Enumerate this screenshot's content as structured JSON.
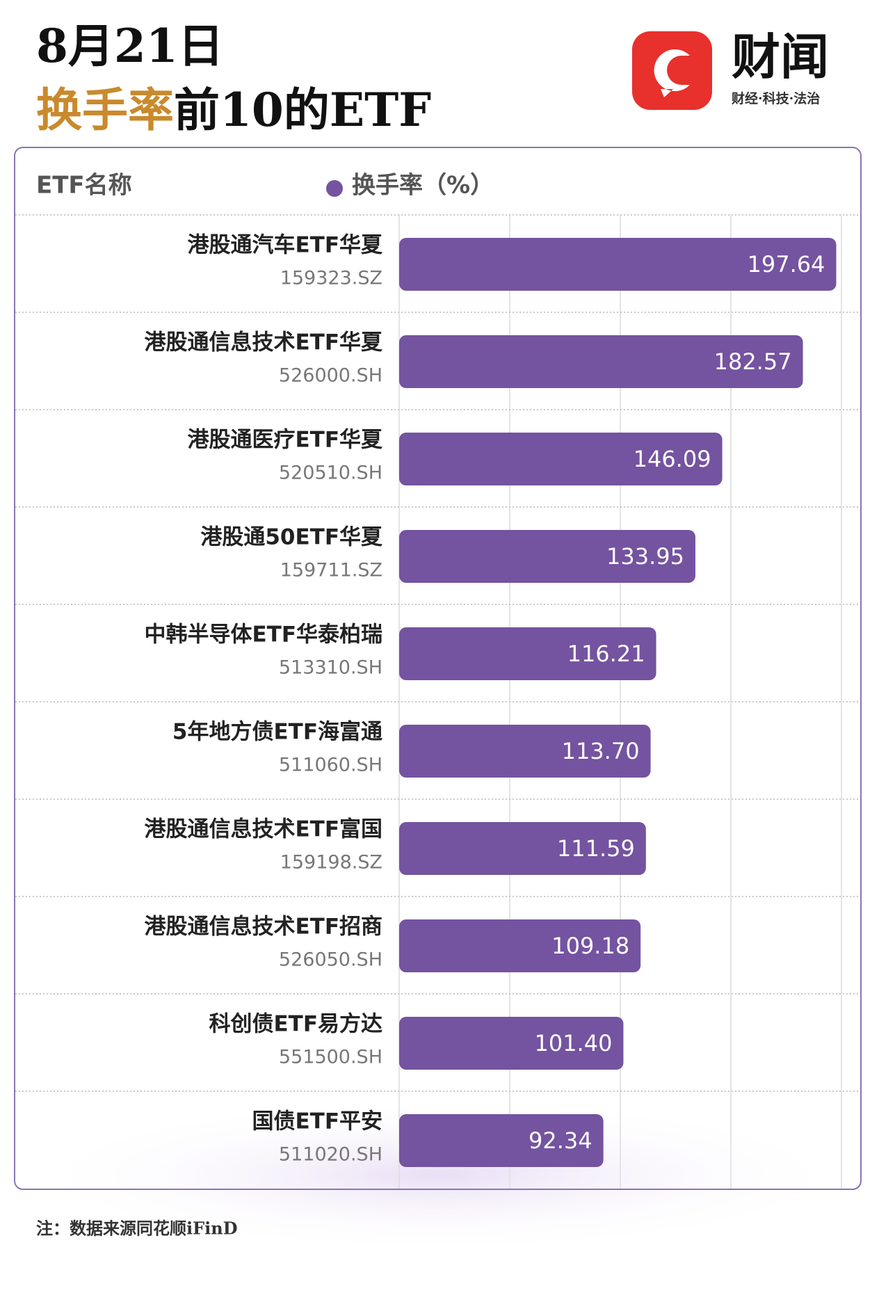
{
  "logo": {
    "name": "财闻",
    "tagline": "财经·科技·法治"
  },
  "chart_data": {
    "type": "bar",
    "horizontal": true,
    "date": "8月21日",
    "title_highlight": "换手率",
    "title": "前10的ETF",
    "category_header": "ETF名称",
    "categories": [
      "港股通汽车ETF华夏",
      "港股通信息技术ETF华夏",
      "港股通医疗ETF华夏",
      "港股通50ETF华夏",
      "中韩半导体ETF华泰柏瑞",
      "5年地方债ETF海富通",
      "港股通信息技术ETF富国",
      "港股通信息技术ETF招商",
      "科创债ETF易方达",
      "国债ETF平安"
    ],
    "codes": [
      "159323.SZ",
      "526000.SH",
      "520510.SH",
      "159711.SZ",
      "513310.SH",
      "511060.SH",
      "159198.SZ",
      "526050.SH",
      "551500.SH",
      "511020.SH"
    ],
    "series": [
      {
        "name": "换手率（%）",
        "color": "#7453a0",
        "values": [
          197.64,
          182.57,
          146.09,
          133.95,
          116.21,
          113.7,
          111.59,
          109.18,
          101.4,
          92.34
        ],
        "value_labels": [
          "197.64",
          "182.57",
          "146.09",
          "133.95",
          "116.21",
          "113.70",
          "111.59",
          "109.18",
          "101.40",
          "92.34"
        ]
      }
    ],
    "xlim": [
      0,
      200
    ],
    "xticks": [
      0,
      50,
      100,
      150,
      200
    ],
    "grid": true,
    "note": "注：数据来源同花顺iFinD"
  }
}
